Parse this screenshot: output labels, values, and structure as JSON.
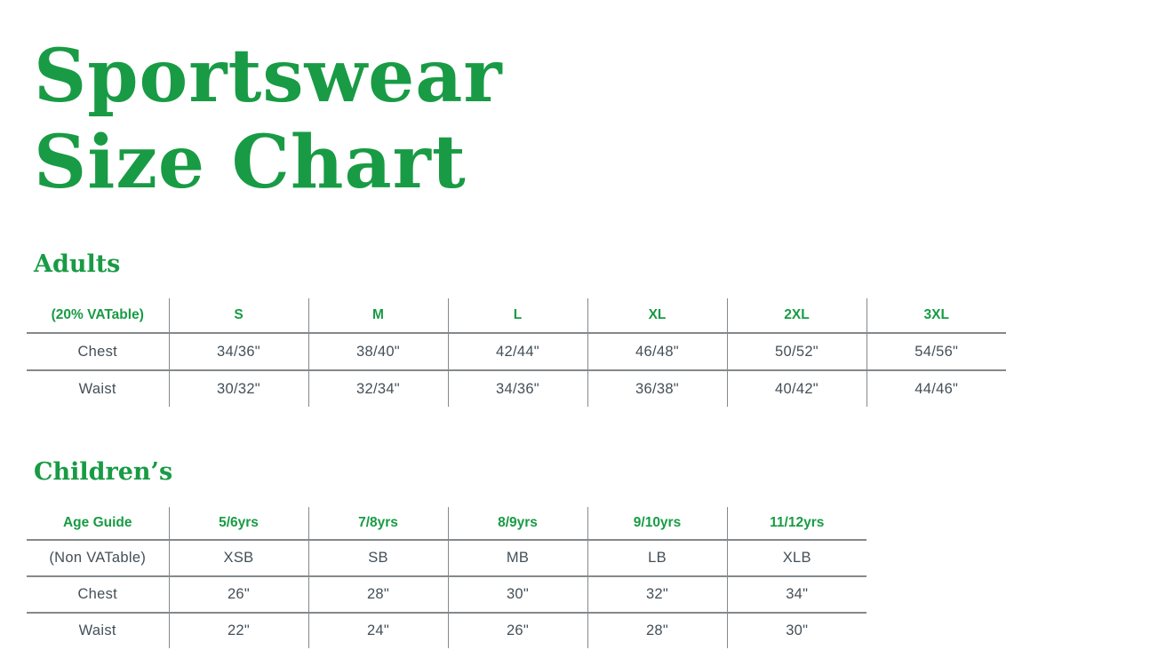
{
  "page": {
    "title_line1": "Sportswear",
    "title_line2": "Size Chart"
  },
  "colors": {
    "accent_green": "#189b44",
    "text_dark": "#434f58",
    "rule_gray": "#85898c",
    "background": "#ffffff"
  },
  "adults": {
    "heading": "Adults",
    "table": {
      "header": [
        "(20% VATable)",
        "S",
        "M",
        "L",
        "XL",
        "2XL",
        "3XL"
      ],
      "rows": [
        [
          "Chest",
          "34/36\"",
          "38/40\"",
          "42/44\"",
          "46/48\"",
          "50/52\"",
          "54/56\""
        ],
        [
          "Waist",
          "30/32\"",
          "32/34\"",
          "34/36\"",
          "36/38\"",
          "40/42\"",
          "44/46\""
        ]
      ]
    }
  },
  "children": {
    "heading": "Children’s",
    "table": {
      "header": [
        "Age Guide",
        "5/6yrs",
        "7/8yrs",
        "8/9yrs",
        "9/10yrs",
        "11/12yrs"
      ],
      "rows": [
        [
          "(Non VATable)",
          "XSB",
          "SB",
          "MB",
          "LB",
          "XLB"
        ],
        [
          "Chest",
          "26\"",
          "28\"",
          "30\"",
          "32\"",
          "34\""
        ],
        [
          "Waist",
          "22\"",
          "24\"",
          "26\"",
          "28\"",
          "30\""
        ]
      ]
    }
  }
}
